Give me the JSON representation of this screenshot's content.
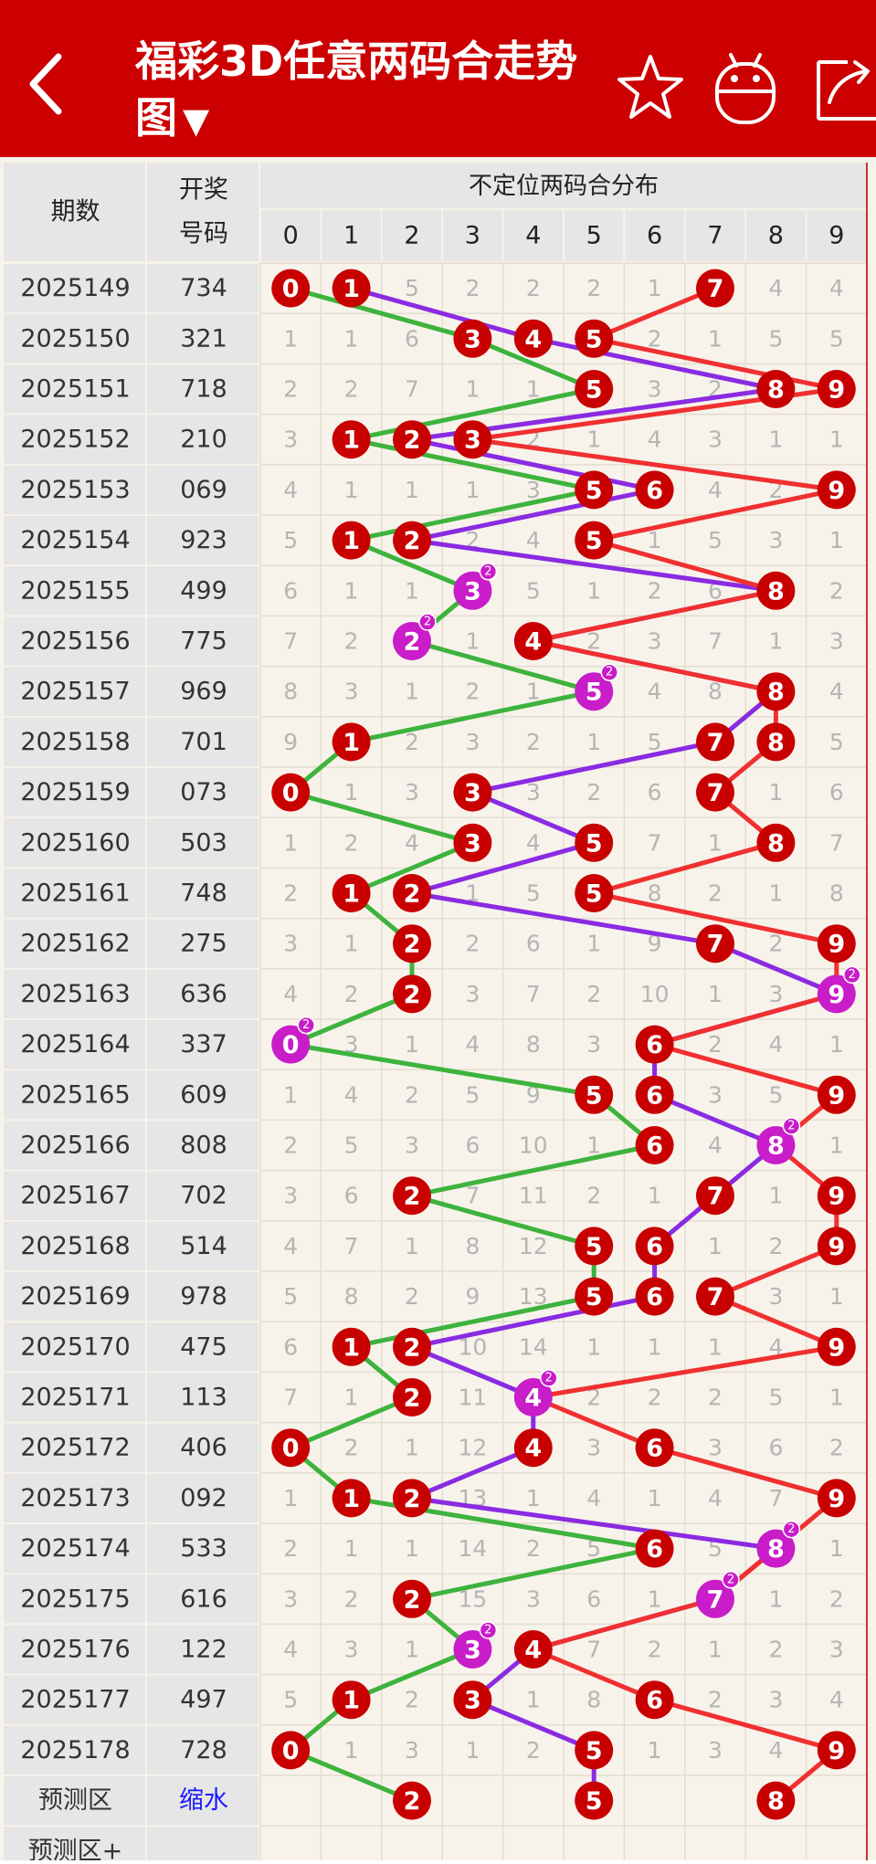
{
  "header": {
    "title": "福彩3D任意两码合走势图",
    "caret": "▼",
    "icons": [
      "back-icon",
      "star-icon",
      "android-icon",
      "share-icon"
    ]
  },
  "table": {
    "col_period": "期数",
    "col_number_l1": "开奖",
    "col_number_l2": "号码",
    "col_dist": "不定位两码合分布",
    "digits": [
      "0",
      "1",
      "2",
      "3",
      "4",
      "5",
      "6",
      "7",
      "8",
      "9"
    ],
    "rows": [
      {
        "period": "2025149",
        "number": "734",
        "cells": [
          "0",
          "1",
          "5",
          "2",
          "2",
          "2",
          "1",
          "7",
          "4",
          "4"
        ],
        "hits": [
          0,
          1,
          7
        ],
        "doubles": []
      },
      {
        "period": "2025150",
        "number": "321",
        "cells": [
          "1",
          "1",
          "6",
          "3",
          "4",
          "5",
          "2",
          "1",
          "5",
          "5"
        ],
        "hits": [
          3,
          4,
          5
        ],
        "doubles": []
      },
      {
        "period": "2025151",
        "number": "718",
        "cells": [
          "2",
          "2",
          "7",
          "1",
          "1",
          "5",
          "3",
          "2",
          "8",
          "9"
        ],
        "hits": [
          5,
          8,
          9
        ],
        "doubles": []
      },
      {
        "period": "2025152",
        "number": "210",
        "cells": [
          "3",
          "1",
          "2",
          "3",
          "2",
          "1",
          "4",
          "3",
          "1",
          "1"
        ],
        "hits": [
          1,
          2,
          3
        ],
        "doubles": []
      },
      {
        "period": "2025153",
        "number": "069",
        "cells": [
          "4",
          "1",
          "1",
          "1",
          "3",
          "5",
          "6",
          "4",
          "2",
          "9"
        ],
        "hits": [
          5,
          6,
          9
        ],
        "doubles": []
      },
      {
        "period": "2025154",
        "number": "923",
        "cells": [
          "5",
          "1",
          "2",
          "2",
          "4",
          "5",
          "1",
          "5",
          "3",
          "1"
        ],
        "hits": [
          1,
          2,
          5
        ],
        "doubles": []
      },
      {
        "period": "2025155",
        "number": "499",
        "cells": [
          "6",
          "1",
          "1",
          "3",
          "5",
          "1",
          "2",
          "6",
          "8",
          "2"
        ],
        "hits": [
          3,
          8
        ],
        "doubles": [
          3
        ]
      },
      {
        "period": "2025156",
        "number": "775",
        "cells": [
          "7",
          "2",
          "2",
          "1",
          "4",
          "2",
          "3",
          "7",
          "1",
          "3"
        ],
        "hits": [
          2,
          4
        ],
        "doubles": [
          2
        ]
      },
      {
        "period": "2025157",
        "number": "969",
        "cells": [
          "8",
          "3",
          "1",
          "2",
          "1",
          "5",
          "4",
          "8",
          "8",
          "4"
        ],
        "hits": [
          5,
          8
        ],
        "doubles": [
          5
        ]
      },
      {
        "period": "2025158",
        "number": "701",
        "cells": [
          "9",
          "1",
          "2",
          "3",
          "2",
          "1",
          "5",
          "7",
          "8",
          "5"
        ],
        "hits": [
          1,
          7,
          8
        ],
        "doubles": []
      },
      {
        "period": "2025159",
        "number": "073",
        "cells": [
          "0",
          "1",
          "3",
          "3",
          "3",
          "2",
          "6",
          "7",
          "1",
          "6"
        ],
        "hits": [
          0,
          3,
          7
        ],
        "doubles": []
      },
      {
        "period": "2025160",
        "number": "503",
        "cells": [
          "1",
          "2",
          "4",
          "3",
          "4",
          "5",
          "7",
          "1",
          "8",
          "7"
        ],
        "hits": [
          3,
          5,
          8
        ],
        "doubles": []
      },
      {
        "period": "2025161",
        "number": "748",
        "cells": [
          "2",
          "1",
          "2",
          "1",
          "5",
          "5",
          "8",
          "2",
          "1",
          "8"
        ],
        "hits": [
          1,
          2,
          5
        ],
        "doubles": []
      },
      {
        "period": "2025162",
        "number": "275",
        "cells": [
          "3",
          "1",
          "2",
          "2",
          "6",
          "1",
          "9",
          "7",
          "2",
          "9"
        ],
        "hits": [
          2,
          7,
          9
        ],
        "doubles": []
      },
      {
        "period": "2025163",
        "number": "636",
        "cells": [
          "4",
          "2",
          "2",
          "3",
          "7",
          "2",
          "10",
          "1",
          "3",
          "9"
        ],
        "hits": [
          2,
          9
        ],
        "doubles": [
          9
        ]
      },
      {
        "period": "2025164",
        "number": "337",
        "cells": [
          "0",
          "3",
          "1",
          "4",
          "8",
          "3",
          "6",
          "2",
          "4",
          "1"
        ],
        "hits": [
          0,
          6
        ],
        "doubles": [
          0
        ]
      },
      {
        "period": "2025165",
        "number": "609",
        "cells": [
          "1",
          "4",
          "2",
          "5",
          "9",
          "5",
          "6",
          "3",
          "5",
          "9"
        ],
        "hits": [
          5,
          6,
          9
        ],
        "doubles": []
      },
      {
        "period": "2025166",
        "number": "808",
        "cells": [
          "2",
          "5",
          "3",
          "6",
          "10",
          "1",
          "6",
          "4",
          "8",
          "1"
        ],
        "hits": [
          6,
          8
        ],
        "doubles": [
          8
        ]
      },
      {
        "period": "2025167",
        "number": "702",
        "cells": [
          "3",
          "6",
          "2",
          "7",
          "11",
          "2",
          "1",
          "7",
          "1",
          "9"
        ],
        "hits": [
          2,
          7,
          9
        ],
        "doubles": []
      },
      {
        "period": "2025168",
        "number": "514",
        "cells": [
          "4",
          "7",
          "1",
          "8",
          "12",
          "5",
          "6",
          "1",
          "2",
          "9"
        ],
        "hits": [
          5,
          6,
          9
        ],
        "doubles": []
      },
      {
        "period": "2025169",
        "number": "978",
        "cells": [
          "5",
          "8",
          "2",
          "9",
          "13",
          "5",
          "6",
          "7",
          "3",
          "1"
        ],
        "hits": [
          5,
          6,
          7
        ],
        "doubles": []
      },
      {
        "period": "2025170",
        "number": "475",
        "cells": [
          "6",
          "1",
          "2",
          "10",
          "14",
          "1",
          "1",
          "1",
          "4",
          "9"
        ],
        "hits": [
          1,
          2,
          9
        ],
        "doubles": []
      },
      {
        "period": "2025171",
        "number": "113",
        "cells": [
          "7",
          "1",
          "2",
          "11",
          "4",
          "2",
          "2",
          "2",
          "5",
          "1"
        ],
        "hits": [
          2,
          4
        ],
        "doubles": [
          4
        ]
      },
      {
        "period": "2025172",
        "number": "406",
        "cells": [
          "0",
          "2",
          "1",
          "12",
          "4",
          "3",
          "6",
          "3",
          "6",
          "2"
        ],
        "hits": [
          0,
          4,
          6
        ],
        "doubles": []
      },
      {
        "period": "2025173",
        "number": "092",
        "cells": [
          "1",
          "1",
          "2",
          "13",
          "1",
          "4",
          "1",
          "4",
          "7",
          "9"
        ],
        "hits": [
          1,
          2,
          9
        ],
        "doubles": []
      },
      {
        "period": "2025174",
        "number": "533",
        "cells": [
          "2",
          "1",
          "1",
          "14",
          "2",
          "5",
          "6",
          "5",
          "8",
          "1"
        ],
        "hits": [
          6,
          8
        ],
        "doubles": [
          8
        ]
      },
      {
        "period": "2025175",
        "number": "616",
        "cells": [
          "3",
          "2",
          "2",
          "15",
          "3",
          "6",
          "1",
          "7",
          "1",
          "2"
        ],
        "hits": [
          2,
          7
        ],
        "doubles": [
          7
        ]
      },
      {
        "period": "2025176",
        "number": "122",
        "cells": [
          "4",
          "3",
          "1",
          "3",
          "4",
          "7",
          "2",
          "1",
          "2",
          "3"
        ],
        "hits": [
          3,
          4
        ],
        "doubles": [
          3
        ]
      },
      {
        "period": "2025177",
        "number": "497",
        "cells": [
          "5",
          "1",
          "2",
          "3",
          "1",
          "8",
          "6",
          "2",
          "3",
          "4"
        ],
        "hits": [
          1,
          3,
          6
        ],
        "doubles": []
      },
      {
        "period": "2025178",
        "number": "728",
        "cells": [
          "0",
          "1",
          "3",
          "1",
          "2",
          "5",
          "1",
          "3",
          "4",
          "9"
        ],
        "hits": [
          0,
          5,
          9
        ],
        "doubles": []
      }
    ],
    "predict": {
      "label": "预测区",
      "link": "缩水",
      "hits": [
        2,
        5,
        8
      ]
    },
    "predict_plus": {
      "label": "预测区+"
    },
    "double_mark": "2"
  },
  "colors": {
    "header_red": "#cc0000",
    "ball_red": "#c80000",
    "ball_magenta": "#c81dc8",
    "line_green": "#3db33d",
    "line_purple": "#8a2be2",
    "line_red": "#f03030",
    "cell_bg": "#f7f3eb",
    "label_bg": "#e6e6e6",
    "missing_text": "#b5b5b5"
  }
}
